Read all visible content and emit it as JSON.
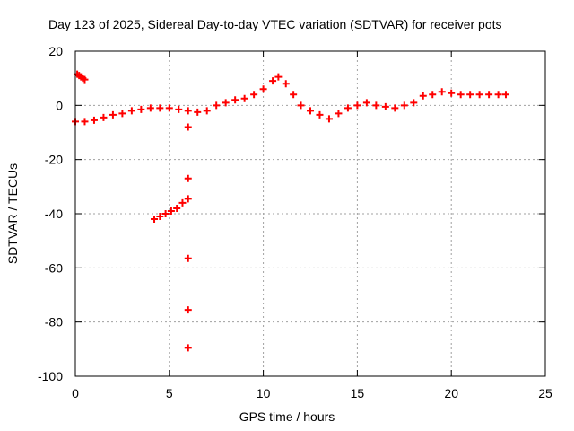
{
  "chart_data": {
    "type": "scatter",
    "title": "Day 123 of 2025, Sidereal Day-to-day VTEC variation (SDTVAR) for receiver pots",
    "xlabel": "GPS time / hours",
    "ylabel": "SDTVAR / TECUs",
    "xlim": [
      0,
      25
    ],
    "ylim": [
      -100,
      20
    ],
    "xticks": [
      0,
      5,
      10,
      15,
      20,
      25
    ],
    "yticks": [
      -100,
      -80,
      -60,
      -40,
      -20,
      0,
      20
    ],
    "grid": true,
    "marker": "+",
    "color": "#ff0000",
    "series": [
      {
        "points": [
          [
            0.0,
            -6
          ],
          [
            0.1,
            11.5
          ],
          [
            0.2,
            11
          ],
          [
            0.3,
            10.5
          ],
          [
            0.4,
            10
          ],
          [
            0.5,
            9.5
          ],
          [
            0.5,
            -6
          ],
          [
            1.0,
            -5.5
          ],
          [
            1.5,
            -4.5
          ],
          [
            2.0,
            -3.5
          ],
          [
            2.5,
            -3
          ],
          [
            3.0,
            -2
          ],
          [
            3.5,
            -1.5
          ],
          [
            4.0,
            -1
          ],
          [
            4.5,
            -1
          ],
          [
            5.0,
            -1
          ],
          [
            5.5,
            -1.5
          ],
          [
            6.0,
            -2
          ],
          [
            6.5,
            -2.5
          ],
          [
            7.0,
            -2
          ],
          [
            7.5,
            0
          ],
          [
            8.0,
            1
          ],
          [
            8.5,
            2
          ],
          [
            9.0,
            2.5
          ],
          [
            9.5,
            4
          ],
          [
            10.0,
            6
          ],
          [
            10.5,
            9
          ],
          [
            10.8,
            10.5
          ],
          [
            11.2,
            8
          ],
          [
            11.6,
            4
          ],
          [
            12.0,
            0
          ],
          [
            12.5,
            -2
          ],
          [
            13.0,
            -3.5
          ],
          [
            13.5,
            -5
          ],
          [
            14.0,
            -3
          ],
          [
            14.5,
            -1
          ],
          [
            15.0,
            0
          ],
          [
            15.5,
            1
          ],
          [
            16.0,
            0
          ],
          [
            16.5,
            -0.5
          ],
          [
            17.0,
            -1
          ],
          [
            17.5,
            0
          ],
          [
            18.0,
            1
          ],
          [
            18.5,
            3.5
          ],
          [
            19.0,
            4
          ],
          [
            19.5,
            5
          ],
          [
            20.0,
            4.5
          ],
          [
            20.5,
            4
          ],
          [
            21.0,
            4
          ],
          [
            21.5,
            4
          ],
          [
            22.0,
            4
          ],
          [
            22.5,
            4
          ],
          [
            22.9,
            4
          ],
          [
            4.2,
            -42
          ],
          [
            4.5,
            -41
          ],
          [
            4.8,
            -40
          ],
          [
            5.1,
            -39
          ],
          [
            5.4,
            -38
          ],
          [
            5.7,
            -36
          ],
          [
            6.0,
            -34.5
          ],
          [
            6.0,
            -8
          ],
          [
            6.0,
            -27
          ],
          [
            6.0,
            -56.5
          ],
          [
            6.0,
            -75.5
          ],
          [
            6.0,
            -89.5
          ]
        ]
      }
    ]
  }
}
